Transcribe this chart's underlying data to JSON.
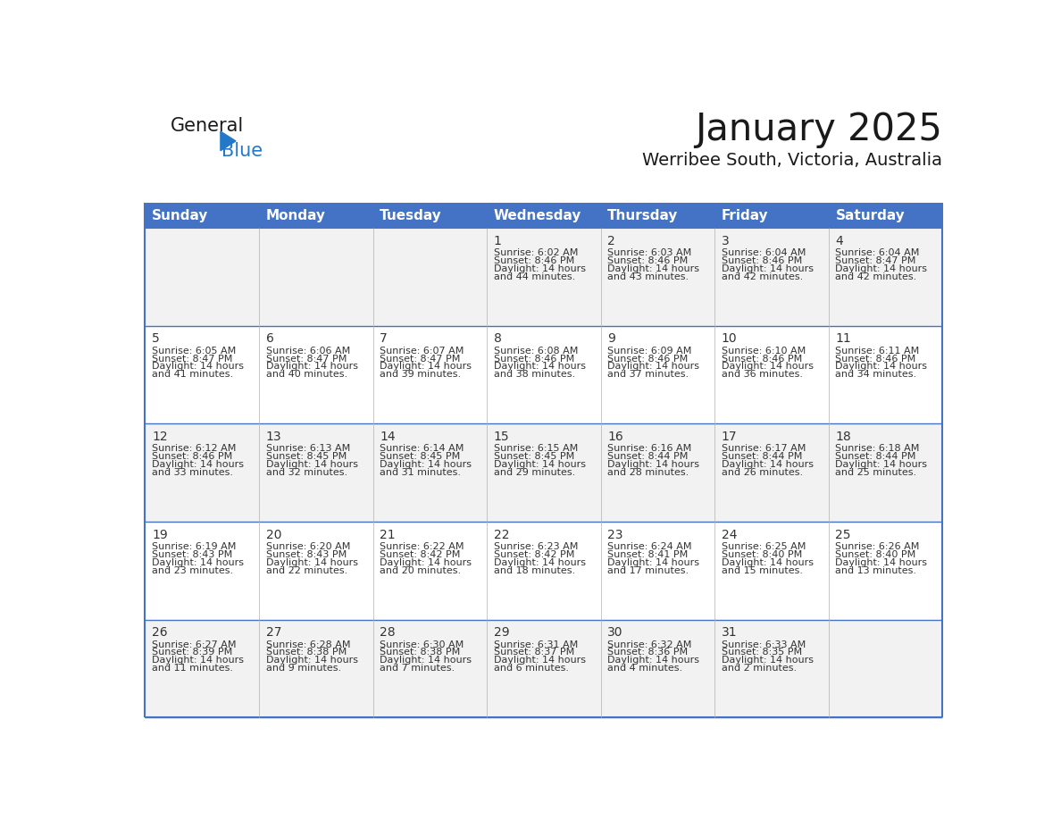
{
  "title": "January 2025",
  "subtitle": "Werribee South, Victoria, Australia",
  "days_of_week": [
    "Sunday",
    "Monday",
    "Tuesday",
    "Wednesday",
    "Thursday",
    "Friday",
    "Saturday"
  ],
  "header_bg": "#4472C4",
  "header_text_color": "#FFFFFF",
  "row_bg_odd": "#FFFFFF",
  "row_bg_even": "#F2F2F2",
  "cell_border_color": "#4472C4",
  "day_number_color": "#333333",
  "info_text_color": "#333333",
  "background_color": "#FFFFFF",
  "logo_general_color": "#1a1a1a",
  "logo_blue_color": "#2478c8",
  "logo_triangle_color": "#2478c8",
  "calendar_data": [
    {
      "day": 1,
      "col": 3,
      "row": 0,
      "sunrise": "6:02 AM",
      "sunset": "8:46 PM",
      "daylight_line1": "14 hours",
      "daylight_line2": "and 44 minutes."
    },
    {
      "day": 2,
      "col": 4,
      "row": 0,
      "sunrise": "6:03 AM",
      "sunset": "8:46 PM",
      "daylight_line1": "14 hours",
      "daylight_line2": "and 43 minutes."
    },
    {
      "day": 3,
      "col": 5,
      "row": 0,
      "sunrise": "6:04 AM",
      "sunset": "8:46 PM",
      "daylight_line1": "14 hours",
      "daylight_line2": "and 42 minutes."
    },
    {
      "day": 4,
      "col": 6,
      "row": 0,
      "sunrise": "6:04 AM",
      "sunset": "8:47 PM",
      "daylight_line1": "14 hours",
      "daylight_line2": "and 42 minutes."
    },
    {
      "day": 5,
      "col": 0,
      "row": 1,
      "sunrise": "6:05 AM",
      "sunset": "8:47 PM",
      "daylight_line1": "14 hours",
      "daylight_line2": "and 41 minutes."
    },
    {
      "day": 6,
      "col": 1,
      "row": 1,
      "sunrise": "6:06 AM",
      "sunset": "8:47 PM",
      "daylight_line1": "14 hours",
      "daylight_line2": "and 40 minutes."
    },
    {
      "day": 7,
      "col": 2,
      "row": 1,
      "sunrise": "6:07 AM",
      "sunset": "8:47 PM",
      "daylight_line1": "14 hours",
      "daylight_line2": "and 39 minutes."
    },
    {
      "day": 8,
      "col": 3,
      "row": 1,
      "sunrise": "6:08 AM",
      "sunset": "8:46 PM",
      "daylight_line1": "14 hours",
      "daylight_line2": "and 38 minutes."
    },
    {
      "day": 9,
      "col": 4,
      "row": 1,
      "sunrise": "6:09 AM",
      "sunset": "8:46 PM",
      "daylight_line1": "14 hours",
      "daylight_line2": "and 37 minutes."
    },
    {
      "day": 10,
      "col": 5,
      "row": 1,
      "sunrise": "6:10 AM",
      "sunset": "8:46 PM",
      "daylight_line1": "14 hours",
      "daylight_line2": "and 36 minutes."
    },
    {
      "day": 11,
      "col": 6,
      "row": 1,
      "sunrise": "6:11 AM",
      "sunset": "8:46 PM",
      "daylight_line1": "14 hours",
      "daylight_line2": "and 34 minutes."
    },
    {
      "day": 12,
      "col": 0,
      "row": 2,
      "sunrise": "6:12 AM",
      "sunset": "8:46 PM",
      "daylight_line1": "14 hours",
      "daylight_line2": "and 33 minutes."
    },
    {
      "day": 13,
      "col": 1,
      "row": 2,
      "sunrise": "6:13 AM",
      "sunset": "8:45 PM",
      "daylight_line1": "14 hours",
      "daylight_line2": "and 32 minutes."
    },
    {
      "day": 14,
      "col": 2,
      "row": 2,
      "sunrise": "6:14 AM",
      "sunset": "8:45 PM",
      "daylight_line1": "14 hours",
      "daylight_line2": "and 31 minutes."
    },
    {
      "day": 15,
      "col": 3,
      "row": 2,
      "sunrise": "6:15 AM",
      "sunset": "8:45 PM",
      "daylight_line1": "14 hours",
      "daylight_line2": "and 29 minutes."
    },
    {
      "day": 16,
      "col": 4,
      "row": 2,
      "sunrise": "6:16 AM",
      "sunset": "8:44 PM",
      "daylight_line1": "14 hours",
      "daylight_line2": "and 28 minutes."
    },
    {
      "day": 17,
      "col": 5,
      "row": 2,
      "sunrise": "6:17 AM",
      "sunset": "8:44 PM",
      "daylight_line1": "14 hours",
      "daylight_line2": "and 26 minutes."
    },
    {
      "day": 18,
      "col": 6,
      "row": 2,
      "sunrise": "6:18 AM",
      "sunset": "8:44 PM",
      "daylight_line1": "14 hours",
      "daylight_line2": "and 25 minutes."
    },
    {
      "day": 19,
      "col": 0,
      "row": 3,
      "sunrise": "6:19 AM",
      "sunset": "8:43 PM",
      "daylight_line1": "14 hours",
      "daylight_line2": "and 23 minutes."
    },
    {
      "day": 20,
      "col": 1,
      "row": 3,
      "sunrise": "6:20 AM",
      "sunset": "8:43 PM",
      "daylight_line1": "14 hours",
      "daylight_line2": "and 22 minutes."
    },
    {
      "day": 21,
      "col": 2,
      "row": 3,
      "sunrise": "6:22 AM",
      "sunset": "8:42 PM",
      "daylight_line1": "14 hours",
      "daylight_line2": "and 20 minutes."
    },
    {
      "day": 22,
      "col": 3,
      "row": 3,
      "sunrise": "6:23 AM",
      "sunset": "8:42 PM",
      "daylight_line1": "14 hours",
      "daylight_line2": "and 18 minutes."
    },
    {
      "day": 23,
      "col": 4,
      "row": 3,
      "sunrise": "6:24 AM",
      "sunset": "8:41 PM",
      "daylight_line1": "14 hours",
      "daylight_line2": "and 17 minutes."
    },
    {
      "day": 24,
      "col": 5,
      "row": 3,
      "sunrise": "6:25 AM",
      "sunset": "8:40 PM",
      "daylight_line1": "14 hours",
      "daylight_line2": "and 15 minutes."
    },
    {
      "day": 25,
      "col": 6,
      "row": 3,
      "sunrise": "6:26 AM",
      "sunset": "8:40 PM",
      "daylight_line1": "14 hours",
      "daylight_line2": "and 13 minutes."
    },
    {
      "day": 26,
      "col": 0,
      "row": 4,
      "sunrise": "6:27 AM",
      "sunset": "8:39 PM",
      "daylight_line1": "14 hours",
      "daylight_line2": "and 11 minutes."
    },
    {
      "day": 27,
      "col": 1,
      "row": 4,
      "sunrise": "6:28 AM",
      "sunset": "8:38 PM",
      "daylight_line1": "14 hours",
      "daylight_line2": "and 9 minutes."
    },
    {
      "day": 28,
      "col": 2,
      "row": 4,
      "sunrise": "6:30 AM",
      "sunset": "8:38 PM",
      "daylight_line1": "14 hours",
      "daylight_line2": "and 7 minutes."
    },
    {
      "day": 29,
      "col": 3,
      "row": 4,
      "sunrise": "6:31 AM",
      "sunset": "8:37 PM",
      "daylight_line1": "14 hours",
      "daylight_line2": "and 6 minutes."
    },
    {
      "day": 30,
      "col": 4,
      "row": 4,
      "sunrise": "6:32 AM",
      "sunset": "8:36 PM",
      "daylight_line1": "14 hours",
      "daylight_line2": "and 4 minutes."
    },
    {
      "day": 31,
      "col": 5,
      "row": 4,
      "sunrise": "6:33 AM",
      "sunset": "8:35 PM",
      "daylight_line1": "14 hours",
      "daylight_line2": "and 2 minutes."
    }
  ],
  "num_rows": 5,
  "num_cols": 7,
  "title_fontsize": 30,
  "subtitle_fontsize": 14,
  "header_fontsize": 11,
  "day_num_fontsize": 10,
  "info_fontsize": 8
}
